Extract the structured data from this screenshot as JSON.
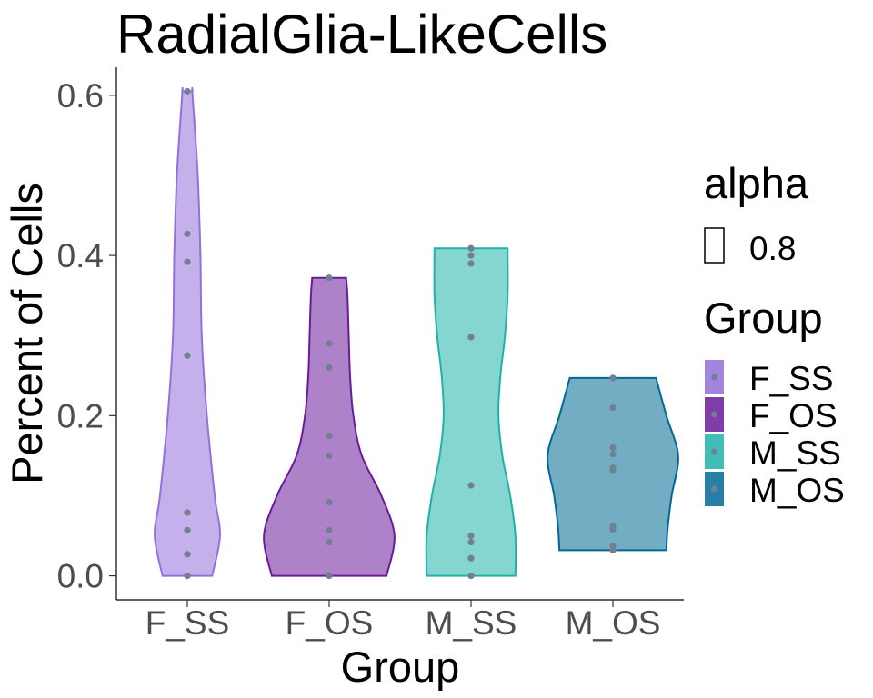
{
  "chart_data": {
    "type": "violin",
    "title": "RadialGlia-LikeCells",
    "xlabel": "Group",
    "ylabel": "Percent of Cells",
    "categories": [
      "F_SS",
      "F_OS",
      "M_SS",
      "M_OS"
    ],
    "ylim": [
      -0.03,
      0.635
    ],
    "yticks": [
      0.0,
      0.2,
      0.4,
      0.6
    ],
    "ytick_labels": [
      "0.0",
      "0.2",
      "0.4",
      "0.6"
    ],
    "grid": false,
    "series": [
      {
        "name": "F_SS",
        "fill": "#9370DB",
        "outline": "#9370DB",
        "points": [
          0.605,
          0.427,
          0.392,
          0.275,
          0.079,
          0.057,
          0.027,
          0.0
        ],
        "density": [
          [
            0.0,
            0.38
          ],
          [
            0.05,
            0.5
          ],
          [
            0.1,
            0.42
          ],
          [
            0.2,
            0.3
          ],
          [
            0.3,
            0.22
          ],
          [
            0.4,
            0.2
          ],
          [
            0.5,
            0.16
          ],
          [
            0.6,
            0.08
          ],
          [
            0.605,
            0.08
          ]
        ]
      },
      {
        "name": "F_OS",
        "fill": "#6A1B9A",
        "outline": "#6A1B9A",
        "points": [
          0.372,
          0.29,
          0.26,
          0.175,
          0.15,
          0.092,
          0.057,
          0.042,
          0.0
        ],
        "density": [
          [
            0.0,
            0.88
          ],
          [
            0.05,
            1.0
          ],
          [
            0.1,
            0.8
          ],
          [
            0.15,
            0.5
          ],
          [
            0.2,
            0.37
          ],
          [
            0.25,
            0.32
          ],
          [
            0.3,
            0.3
          ],
          [
            0.35,
            0.28
          ],
          [
            0.372,
            0.26
          ]
        ]
      },
      {
        "name": "M_SS",
        "fill": "#20B2AA",
        "outline": "#20B2AA",
        "points": [
          0.409,
          0.4,
          0.39,
          0.298,
          0.113,
          0.05,
          0.042,
          0.022,
          0.0
        ],
        "density": [
          [
            0.0,
            0.68
          ],
          [
            0.05,
            0.68
          ],
          [
            0.1,
            0.6
          ],
          [
            0.15,
            0.48
          ],
          [
            0.2,
            0.42
          ],
          [
            0.25,
            0.45
          ],
          [
            0.3,
            0.52
          ],
          [
            0.35,
            0.56
          ],
          [
            0.409,
            0.56
          ]
        ]
      },
      {
        "name": "M_OS",
        "fill": "#006994",
        "outline": "#006994",
        "points": [
          0.247,
          0.21,
          0.16,
          0.152,
          0.135,
          0.132,
          0.062,
          0.058,
          0.037,
          0.032
        ],
        "density": [
          [
            0.032,
            0.82
          ],
          [
            0.06,
            0.84
          ],
          [
            0.1,
            0.9
          ],
          [
            0.15,
            1.0
          ],
          [
            0.2,
            0.82
          ],
          [
            0.247,
            0.66
          ]
        ]
      }
    ],
    "point_color": "#708090",
    "legend": {
      "placement": "right",
      "alpha_title": "alpha",
      "alpha_value": "0.8",
      "group_title": "Group",
      "items": [
        "F_SS",
        "F_OS",
        "M_SS",
        "M_OS"
      ]
    }
  }
}
